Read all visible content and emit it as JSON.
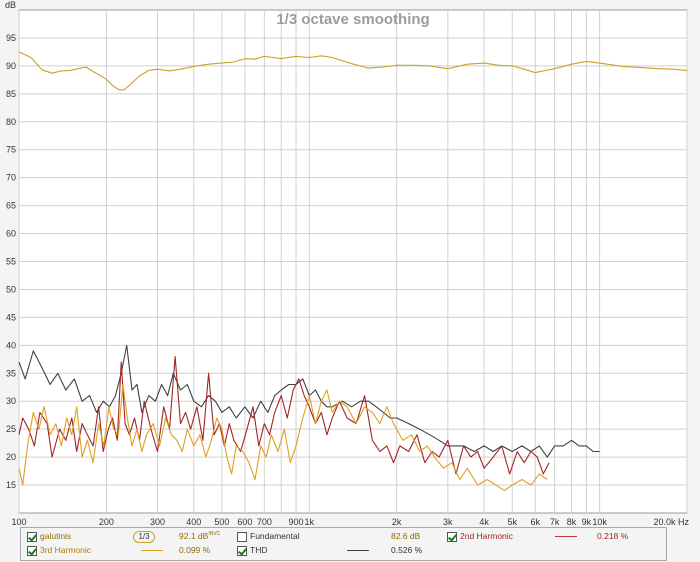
{
  "chart_data": {
    "type": "line",
    "title": "1/3 octave smoothing",
    "ylabel": "dB",
    "xlabel": "Hz",
    "x_scale": "log",
    "xlim": [
      100,
      20000
    ],
    "ylim": [
      10,
      100
    ],
    "grid": true,
    "x_ticks": [
      {
        "v": 100,
        "label": "100"
      },
      {
        "v": 200,
        "label": "200"
      },
      {
        "v": 300,
        "label": "300"
      },
      {
        "v": 400,
        "label": "400"
      },
      {
        "v": 500,
        "label": "500"
      },
      {
        "v": 600,
        "label": "600"
      },
      {
        "v": 700,
        "label": "700"
      },
      {
        "v": 900,
        "label": "900"
      },
      {
        "v": 1000,
        "label": "1k"
      },
      {
        "v": 2000,
        "label": "2k"
      },
      {
        "v": 3000,
        "label": "3k"
      },
      {
        "v": 4000,
        "label": "4k"
      },
      {
        "v": 5000,
        "label": "5k"
      },
      {
        "v": 6000,
        "label": "6k"
      },
      {
        "v": 7000,
        "label": "7k"
      },
      {
        "v": 8000,
        "label": "8k"
      },
      {
        "v": 9000,
        "label": "9k"
      },
      {
        "v": 10000,
        "label": "10k"
      },
      {
        "v": 20000,
        "label": "20.0k Hz"
      }
    ],
    "x_gridlines": [
      100,
      200,
      300,
      400,
      500,
      600,
      700,
      800,
      900,
      1000,
      2000,
      3000,
      4000,
      5000,
      6000,
      7000,
      8000,
      9000,
      10000,
      20000
    ],
    "y_ticks": [
      15,
      20,
      25,
      30,
      35,
      40,
      45,
      50,
      55,
      60,
      65,
      70,
      75,
      80,
      85,
      90,
      95
    ],
    "series": [
      {
        "name": "galutinis",
        "color": "#c9a227",
        "x": [
          100,
          110,
          120,
          130,
          140,
          150,
          160,
          170,
          180,
          190,
          200,
          210,
          220,
          230,
          240,
          260,
          280,
          300,
          330,
          360,
          400,
          450,
          500,
          550,
          600,
          650,
          700,
          750,
          800,
          900,
          1000,
          1100,
          1200,
          1400,
          1600,
          1800,
          2000,
          2300,
          2600,
          3000,
          3500,
          4000,
          4500,
          5000,
          5500,
          6000,
          7000,
          8000,
          9000,
          10000,
          12000,
          14000,
          16000,
          18000,
          20000
        ],
        "y": [
          92.5,
          91.5,
          89.3,
          88.7,
          89.1,
          89.2,
          89.5,
          89.8,
          89.0,
          88.3,
          87.6,
          86.5,
          85.8,
          85.7,
          86.5,
          88.2,
          89.2,
          89.4,
          89.1,
          89.4,
          89.9,
          90.3,
          90.5,
          90.7,
          91.3,
          91.2,
          91.7,
          91.5,
          91.3,
          91.7,
          91.5,
          91.8,
          91.5,
          90.4,
          89.6,
          89.8,
          90.1,
          90.1,
          90.0,
          89.5,
          90.3,
          90.5,
          90.1,
          90.0,
          89.4,
          88.8,
          89.5,
          90.3,
          90.8,
          90.5,
          89.9,
          89.7,
          89.5,
          89.4,
          89.2
        ]
      },
      {
        "name": "2nd Harmonic",
        "color": "#a02626",
        "x": [
          100,
          103,
          108,
          113,
          118,
          125,
          130,
          138,
          145,
          152,
          158,
          165,
          172,
          180,
          188,
          195,
          203,
          210,
          218,
          225,
          232,
          240,
          250,
          260,
          270,
          285,
          300,
          315,
          330,
          345,
          360,
          375,
          390,
          410,
          430,
          450,
          470,
          490,
          510,
          530,
          550,
          580,
          610,
          640,
          670,
          700,
          730,
          760,
          800,
          840,
          880,
          920,
          960,
          1000,
          1050,
          1100,
          1150,
          1200,
          1270,
          1350,
          1450,
          1550,
          1650,
          1750,
          1850,
          1950,
          2050,
          2200,
          2350,
          2500,
          2650,
          2800,
          3000,
          3200,
          3400,
          3600,
          3800,
          4000,
          4300,
          4600,
          4900,
          5200,
          5500,
          5800,
          6100,
          6400,
          6700
        ],
        "y": [
          24,
          27,
          25,
          22,
          28,
          26,
          20,
          25,
          23,
          27,
          21,
          26,
          24,
          22,
          29,
          21,
          25,
          27,
          23,
          37,
          26,
          24,
          27,
          23,
          30,
          25,
          21,
          29,
          25,
          38,
          26,
          28,
          25,
          29,
          23,
          35,
          24,
          26,
          22,
          26,
          23,
          21,
          25,
          29,
          22,
          26,
          24,
          28,
          31,
          27,
          32,
          34,
          31,
          29,
          26,
          28,
          24,
          27,
          30,
          27,
          26,
          31,
          23,
          21,
          22,
          19,
          22,
          21,
          24,
          19,
          21,
          20,
          23,
          17,
          22,
          20,
          21,
          18,
          20,
          22,
          17,
          21,
          19,
          21,
          20,
          17,
          19
        ]
      },
      {
        "name": "3rd Harmonic",
        "color": "#e0a020",
        "x": [
          100,
          103,
          107,
          112,
          117,
          122,
          128,
          134,
          140,
          146,
          152,
          158,
          165,
          172,
          180,
          188,
          196,
          204,
          212,
          220,
          228,
          236,
          245,
          255,
          265,
          275,
          290,
          305,
          320,
          335,
          350,
          365,
          380,
          400,
          420,
          440,
          460,
          480,
          500,
          520,
          540,
          560,
          590,
          620,
          650,
          680,
          710,
          740,
          780,
          820,
          860,
          900,
          950,
          1000,
          1050,
          1100,
          1150,
          1200,
          1270,
          1350,
          1450,
          1550,
          1650,
          1750,
          1850,
          1950,
          2100,
          2250,
          2400,
          2550,
          2700,
          2900,
          3100,
          3300,
          3500,
          3800,
          4100,
          4400,
          4700,
          5000,
          5400,
          5800,
          6200,
          6600
        ],
        "y": [
          18,
          15,
          22,
          28,
          25,
          29,
          24,
          26,
          22,
          27,
          24,
          29,
          20,
          23,
          19,
          26,
          22,
          29,
          25,
          24,
          33,
          27,
          22,
          25,
          21,
          24,
          26,
          22,
          27,
          24,
          23,
          21,
          25,
          22,
          24,
          20,
          23,
          27,
          25,
          20,
          17,
          22,
          21,
          19,
          16,
          22,
          20,
          24,
          21,
          25,
          19,
          22,
          27,
          31,
          26,
          30,
          32,
          28,
          30,
          29,
          26,
          29,
          28,
          26,
          29,
          26,
          23,
          24,
          21,
          22,
          20,
          18,
          19,
          16,
          18,
          15,
          16,
          15,
          14,
          15,
          16,
          15,
          17,
          16
        ]
      },
      {
        "name": "THD",
        "color": "#404040",
        "x": [
          100,
          105,
          112,
          120,
          128,
          136,
          145,
          155,
          165,
          175,
          185,
          195,
          205,
          215,
          225,
          235,
          245,
          255,
          265,
          280,
          295,
          310,
          325,
          340,
          360,
          380,
          400,
          425,
          450,
          475,
          500,
          530,
          560,
          600,
          640,
          680,
          720,
          760,
          800,
          850,
          900,
          950,
          1000,
          1050,
          1100,
          1150,
          1200,
          1300,
          1400,
          1500,
          1600,
          1700,
          1800,
          1900,
          2000,
          2200,
          2400,
          2600,
          2800,
          3000,
          3200,
          3400,
          3700,
          4000,
          4300,
          4600,
          5000,
          5400,
          5800,
          6200,
          6600,
          7000,
          7500,
          8000,
          8500,
          9000,
          9500,
          10000
        ],
        "y": [
          37,
          34,
          39,
          36,
          33,
          35,
          32,
          34,
          30,
          31,
          28,
          30,
          29,
          31,
          35,
          40,
          32,
          33,
          28,
          31,
          30,
          33,
          31,
          35,
          32,
          33,
          30,
          29,
          31,
          30,
          28,
          29,
          27,
          29,
          27,
          30,
          28,
          31,
          32,
          33,
          33,
          34,
          31,
          32,
          30,
          29,
          29,
          30,
          29,
          30,
          30,
          29,
          28,
          27,
          27,
          26,
          25,
          24,
          23,
          22,
          22,
          22,
          21,
          22,
          21,
          22,
          21,
          22,
          21,
          22,
          20,
          22,
          22,
          23,
          22,
          22,
          21,
          21
        ]
      }
    ]
  },
  "legend": {
    "items": [
      {
        "label": "galutinis",
        "checked": true,
        "color": "#c9a227",
        "smoothing": "1/3",
        "value": "92.1 dB",
        "value_sup": "INVC"
      },
      {
        "label": "Fundamental",
        "checked": false,
        "color": "#c9a227",
        "value": "82.6 dB"
      },
      {
        "label": "2nd Harmonic",
        "checked": true,
        "color": "#c0392b",
        "value": "0.218 %"
      },
      {
        "label": "3rd Harmonic",
        "checked": true,
        "color": "#e0a020",
        "value": "0.099 %"
      },
      {
        "label": "THD",
        "checked": true,
        "color": "#404040",
        "value": "0.526 %"
      }
    ]
  }
}
